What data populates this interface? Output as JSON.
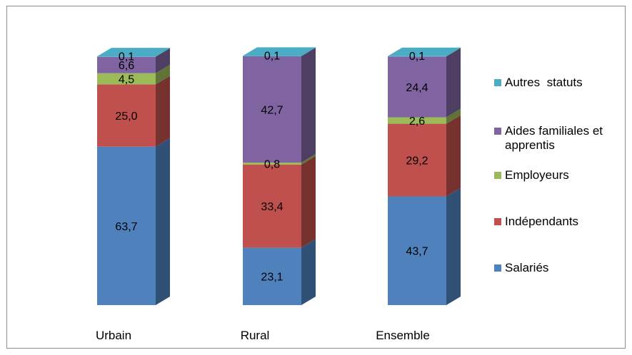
{
  "chart_data": {
    "type": "bar",
    "stacked": true,
    "percent": true,
    "three_d": true,
    "categories": [
      "Urbain",
      "Rural",
      "Ensemble"
    ],
    "series": [
      {
        "name": "Salariés",
        "color": "#4f81bd",
        "values": [
          63.7,
          23.1,
          43.7
        ],
        "labels": [
          "63,7",
          "23,1",
          "43,7"
        ]
      },
      {
        "name": "Indépendants",
        "color": "#c0504d",
        "values": [
          25.0,
          33.4,
          29.2
        ],
        "labels": [
          "25,0",
          "33,4",
          "29,2"
        ]
      },
      {
        "name": "Employeurs",
        "color": "#9bbb59",
        "values": [
          4.5,
          0.8,
          2.6
        ],
        "labels": [
          "4,5",
          "0,8",
          "2,6"
        ]
      },
      {
        "name": "Aides familiales et apprentis",
        "color": "#8064a2",
        "values": [
          6.6,
          42.7,
          24.4
        ],
        "labels": [
          "6,6",
          "42,7",
          "24,4"
        ]
      },
      {
        "name": "Autres  statuts",
        "color": "#4bacc6",
        "values": [
          0.1,
          0.1,
          0.1
        ],
        "labels": [
          "0,1",
          "0,1",
          "0,1"
        ]
      }
    ],
    "legend_position": "right",
    "legend_order": [
      "Autres  statuts",
      "Aides familiales et apprentis",
      "Employeurs",
      "Indépendants",
      "Salariés"
    ],
    "grid": false
  }
}
